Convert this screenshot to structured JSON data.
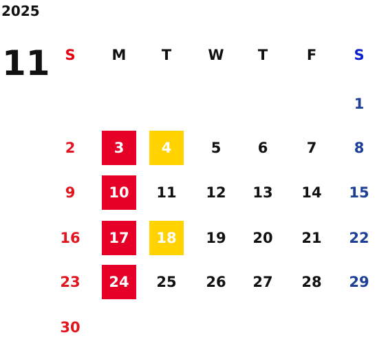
{
  "year": "2025",
  "month": "11",
  "weekdays": [
    {
      "text": "S",
      "color": "#e60012"
    },
    {
      "text": "M",
      "color": "#111111"
    },
    {
      "text": "T",
      "color": "#111111"
    },
    {
      "text": "W",
      "color": "#111111"
    },
    {
      "text": "T",
      "color": "#111111"
    },
    {
      "text": "F",
      "color": "#111111"
    },
    {
      "text": "S",
      "color": "#0b1fd0"
    }
  ],
  "column_colors": [
    "#e0151f",
    "#111111",
    "#111111",
    "#111111",
    "#111111",
    "#111111",
    "#1d3f95"
  ],
  "weeks": [
    [
      null,
      null,
      null,
      null,
      null,
      null,
      {
        "text": "1"
      }
    ],
    [
      {
        "text": "2"
      },
      {
        "text": "3",
        "highlight": "#e60027"
      },
      {
        "text": "4",
        "highlight": "#ffd200"
      },
      {
        "text": "5"
      },
      {
        "text": "6"
      },
      {
        "text": "7"
      },
      {
        "text": "8"
      }
    ],
    [
      {
        "text": "9"
      },
      {
        "text": "10",
        "highlight": "#e60027"
      },
      {
        "text": "11"
      },
      {
        "text": "12"
      },
      {
        "text": "13"
      },
      {
        "text": "14"
      },
      {
        "text": "15"
      }
    ],
    [
      {
        "text": "16"
      },
      {
        "text": "17",
        "highlight": "#e60027"
      },
      {
        "text": "18",
        "highlight": "#ffd200"
      },
      {
        "text": "19"
      },
      {
        "text": "20"
      },
      {
        "text": "21"
      },
      {
        "text": "22"
      }
    ],
    [
      {
        "text": "23"
      },
      {
        "text": "24",
        "highlight": "#e60027"
      },
      {
        "text": "25"
      },
      {
        "text": "26"
      },
      {
        "text": "27"
      },
      {
        "text": "28"
      },
      {
        "text": "29"
      }
    ],
    [
      {
        "text": "30"
      },
      null,
      null,
      null,
      null,
      null,
      null
    ]
  ]
}
